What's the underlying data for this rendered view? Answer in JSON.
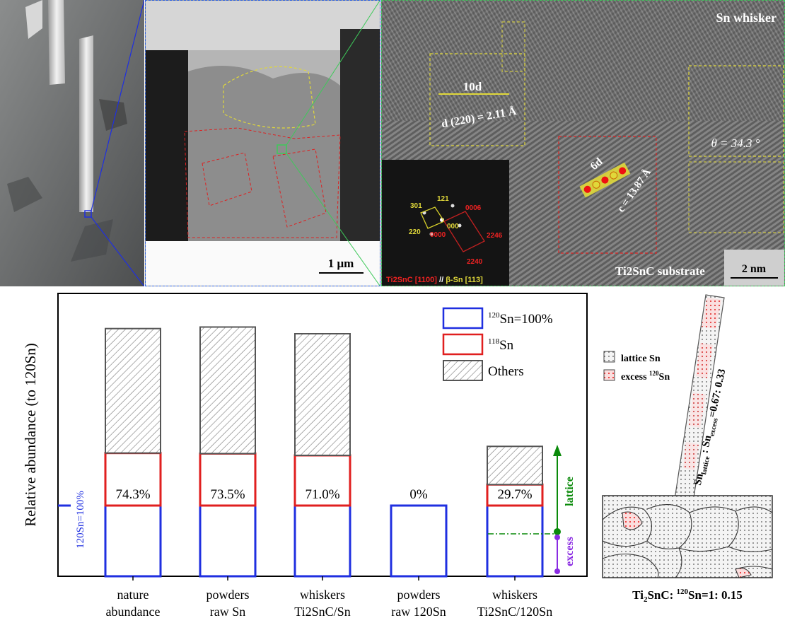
{
  "images": {
    "tem_scale": "1 μm",
    "hrtem_title": "Sn whisker",
    "hrtem_substrate": "Ti2SnC substrate",
    "hrtem_scale": "2 nm",
    "d_spacing_count": "10d",
    "d_spacing": "d (220) = 2.11 Å",
    "c_spacing_count": "6d",
    "c_spacing": "c = 13.87 Å",
    "angle": "θ = 34.3 °",
    "fft_spots": [
      "301",
      "121",
      "0006",
      "220",
      "000",
      "0000",
      "2246",
      "2240"
    ],
    "fft_orientation_a": "Ti2SnC [1100]",
    "fft_orientation_sep": " // ",
    "fft_orientation_b": "β-Sn [113]"
  },
  "chart_data": {
    "type": "bar",
    "ylabel": "Relative abundance (to 120Sn)",
    "baseline_label": "120Sn=100%",
    "categories": [
      [
        "nature",
        "abundance"
      ],
      [
        "powders",
        "raw Sn"
      ],
      [
        "whiskers",
        "Ti2SnC/Sn"
      ],
      [
        "powders",
        "raw 120Sn"
      ],
      [
        "whiskers",
        "Ti2SnC/120Sn"
      ]
    ],
    "series": [
      {
        "name": "120Sn=100%",
        "color": "#1f2fe0",
        "values": [
          100,
          100,
          100,
          100,
          100
        ]
      },
      {
        "name": "118Sn",
        "color": "#e01f1f",
        "values": [
          74.3,
          73.5,
          71.0,
          0,
          29.7
        ]
      },
      {
        "name": "Others",
        "color": "#555555",
        "values": [
          176,
          179,
          172,
          0,
          54
        ]
      }
    ],
    "data_labels": [
      "74.3%",
      "73.5%",
      "71.0%",
      "0%",
      "29.7%"
    ],
    "annotations": {
      "lattice": "lattice",
      "excess": "excess",
      "excess_level": 60
    },
    "legend_position": "top-right"
  },
  "schematic": {
    "legend": [
      {
        "label": "lattice Sn",
        "kind": "dots"
      },
      {
        "label": "excess 120Sn",
        "kind": "red"
      }
    ],
    "ratio_label": "Sn_lattice : Sn_excess = 0.67: 0.33",
    "footer": "Ti2SnC: 120Sn=1: 0.15"
  }
}
